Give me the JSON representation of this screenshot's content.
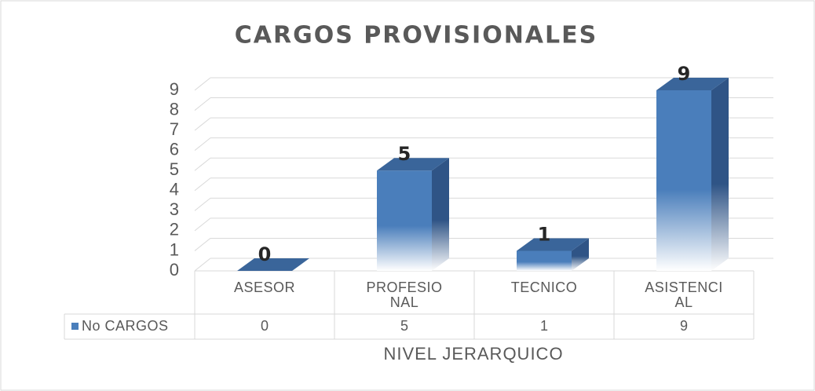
{
  "chart_data": {
    "type": "bar",
    "title": "CARGOS PROVISIONALES",
    "categories": [
      "ASESOR",
      "PROFESIONAL",
      "TECNICO",
      "ASISTENCIAL"
    ],
    "series": [
      {
        "name": "No CARGOS",
        "color": "#4a7ebb",
        "values": [
          0,
          5,
          1,
          9
        ]
      }
    ],
    "ylim": [
      0,
      9
    ],
    "yticks": [
      0,
      1,
      2,
      3,
      4,
      5,
      6,
      7,
      8,
      9
    ],
    "grid": true,
    "x_label": "NIVEL JERARQUICO"
  }
}
